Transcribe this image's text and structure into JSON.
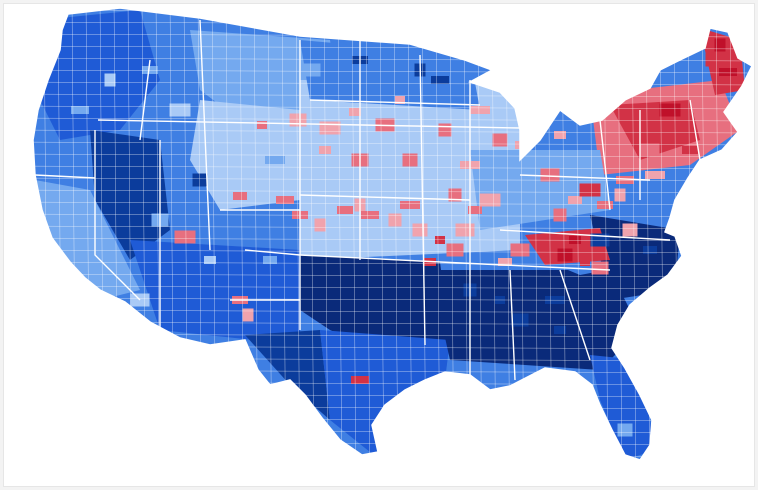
{
  "map": {
    "subject": "contiguous-united-states",
    "unit": "county",
    "legend_visible": false,
    "colors": {
      "blue_darkest": "#0a2a7a",
      "blue_dark": "#0b3c9c",
      "blue": "#1f5bd6",
      "blue_medium": "#3f7fe3",
      "blue_light": "#74a9ef",
      "blue_pale": "#a9caf6",
      "red_pale": "#f0a3ad",
      "red_light": "#e76f7f",
      "red": "#d23246",
      "red_dark": "#c0102a",
      "border": "#ffffff"
    }
  }
}
